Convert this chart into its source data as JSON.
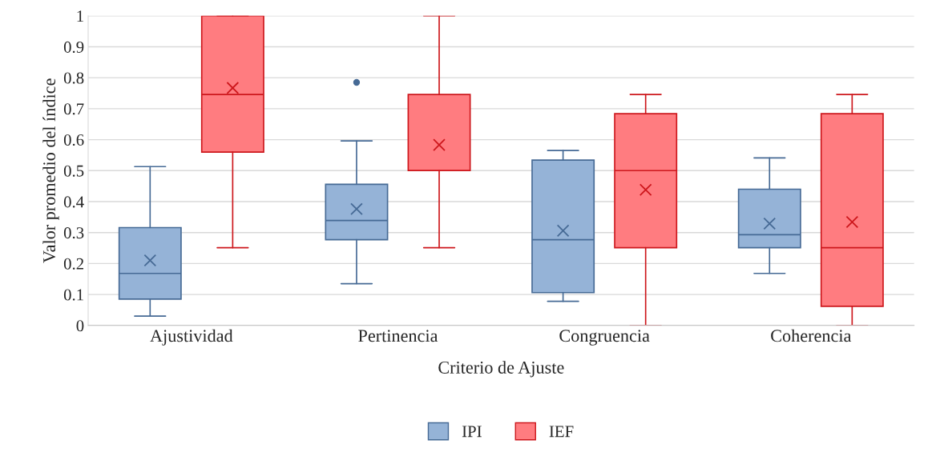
{
  "chart_data": {
    "type": "box",
    "xlabel": "Criterio de Ajuste",
    "ylabel": "Valor promedio del índice",
    "categories": [
      "Ajustividad",
      "Pertinencia",
      "Congruencia",
      "Coherencia"
    ],
    "series": [
      {
        "name": "IPI",
        "color": "#95b3d7",
        "boxes": [
          {
            "low": 0.03,
            "q1": 0.085,
            "median": 0.168,
            "q3": 0.316,
            "high": 0.513,
            "mean": 0.21
          },
          {
            "low": 0.135,
            "q1": 0.277,
            "median": 0.339,
            "q3": 0.456,
            "high": 0.596,
            "mean": 0.376,
            "outliers": [
              0.785
            ]
          },
          {
            "low": 0.078,
            "q1": 0.106,
            "median": 0.277,
            "q3": 0.534,
            "high": 0.565,
            "mean": 0.306
          },
          {
            "low": 0.168,
            "q1": 0.251,
            "median": 0.293,
            "q3": 0.44,
            "high": 0.541,
            "mean": 0.329
          }
        ]
      },
      {
        "name": "IEF",
        "color": "#ff7c80",
        "boxes": [
          {
            "low": 0.251,
            "q1": 0.56,
            "median": 0.746,
            "q3": 1.0,
            "high": 1.0,
            "mean": 0.767
          },
          {
            "low": 0.251,
            "q1": 0.5,
            "median": 0.5,
            "q3": 0.746,
            "high": 1.0,
            "mean": 0.583
          },
          {
            "low": 0.0,
            "q1": 0.251,
            "median": 0.5,
            "q3": 0.684,
            "high": 0.746,
            "mean": 0.438
          },
          {
            "low": 0.0,
            "q1": 0.062,
            "median": 0.251,
            "q3": 0.684,
            "high": 0.746,
            "mean": 0.334
          }
        ]
      }
    ],
    "ylim": [
      0,
      1
    ],
    "yticks": [
      0,
      0.1,
      0.2,
      0.3,
      0.4,
      0.5,
      0.6,
      0.7,
      0.8,
      0.9,
      1
    ],
    "grid": "y",
    "legend": "bottom"
  }
}
